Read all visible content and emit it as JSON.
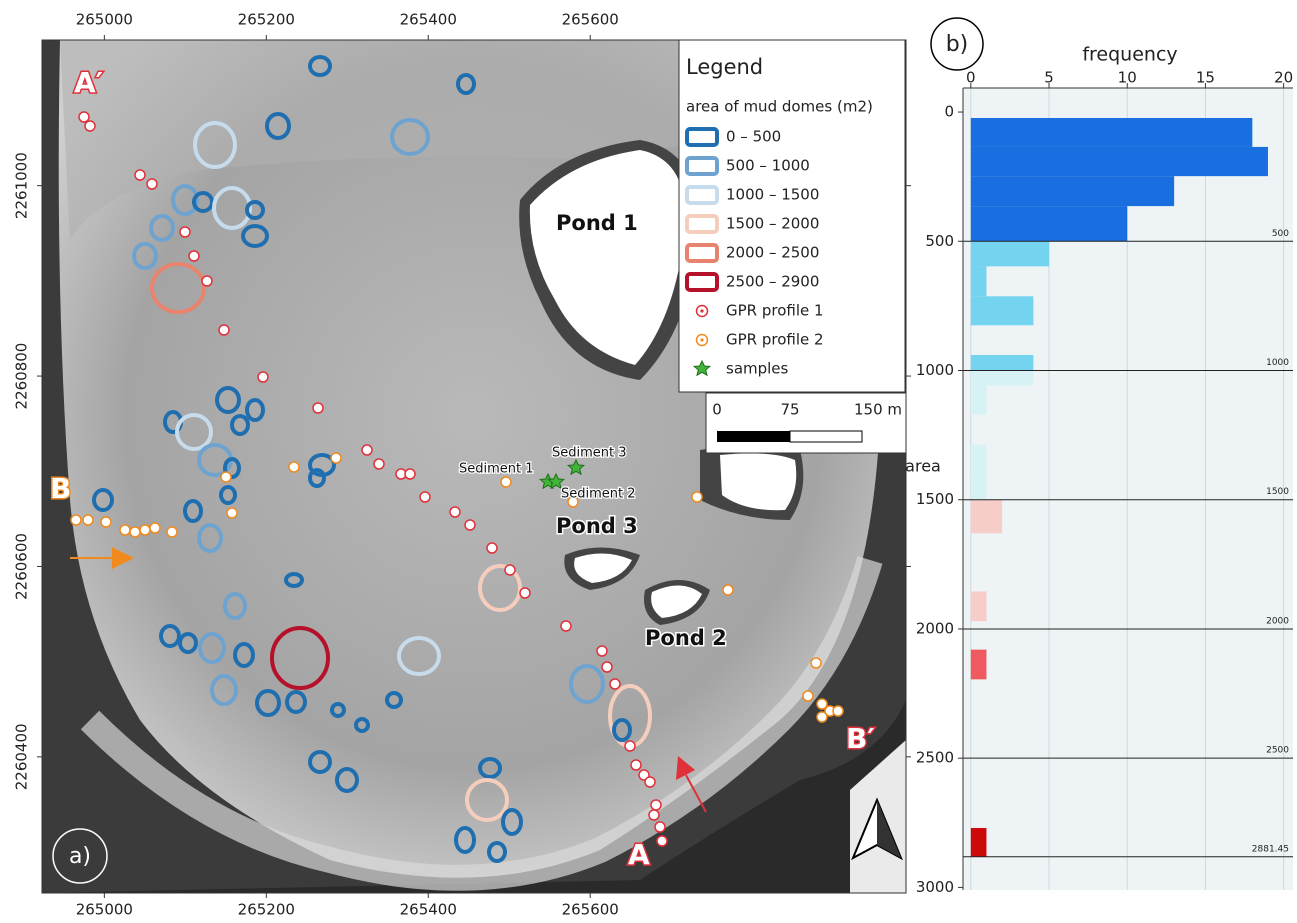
{
  "map": {
    "panel_label": "a)",
    "xlim": [
      264923,
      265990
    ],
    "xticks": [
      265000,
      265200,
      265400,
      265600
    ],
    "ylim": [
      2260257,
      2261153
    ],
    "yticks": [
      2260400,
      2260600,
      2260800,
      2261000
    ],
    "legend": {
      "title": "Legend",
      "subtitle": "area of mud domes (m2)",
      "items": [
        {
          "label": "0 – 500",
          "color": "#1f6fb0"
        },
        {
          "label": "500 – 1000",
          "color": "#6ea3cf"
        },
        {
          "label": "1000 – 1500",
          "color": "#c6dcec"
        },
        {
          "label": "1500 – 2000",
          "color": "#f5cdbd"
        },
        {
          "label": "2000 – 2500",
          "color": "#e8846d"
        },
        {
          "label": "2500 – 2900",
          "color": "#b5112a"
        }
      ],
      "markers": [
        {
          "label": "GPR profile 1",
          "color": "#e0303a"
        },
        {
          "label": "GPR profile 2",
          "color": "#f08a1e"
        },
        {
          "label": "samples",
          "color": "#42b43a"
        }
      ]
    },
    "scale_bar": {
      "labels": [
        "0",
        "75",
        "150 m"
      ]
    },
    "labels": {
      "pond_1": "Pond 1",
      "pond_2": "Pond 2",
      "pond_3": "Pond 3",
      "sediment_1": "Sediment 1",
      "sediment_2": "Sediment 2",
      "sediment_3": "Sediment 3",
      "a_prime": "A′",
      "a": "A",
      "b": "B",
      "b_prime": "B′"
    }
  },
  "chart_data": {
    "type": "histogram",
    "orientation": "horizontal",
    "panel_label": "b)",
    "xlabel": "frequency",
    "ylabel": "area",
    "bins": [
      23,
      135,
      248,
      364,
      500,
      597,
      713,
      825,
      940,
      1000,
      1058,
      1170,
      1287,
      1400,
      1500,
      1630,
      1855,
      1970,
      2080,
      2195,
      2770,
      2881
    ],
    "values": [
      18,
      19,
      13,
      10,
      5,
      1,
      4,
      0,
      4,
      4,
      1,
      0,
      1,
      1,
      2,
      0,
      1,
      0,
      1,
      0,
      1
    ],
    "colors": [
      "#1a6fe0",
      "#1a6fe0",
      "#1a6fe0",
      "#1a6fe0",
      "#74d3ee",
      "#74d3ee",
      "#74d3ee",
      "#74d3ee",
      "#74d3ee",
      "#d6f2f4",
      "#d6f2f4",
      "#d6f2f4",
      "#d6f2f4",
      "#d6f2f4",
      "#f7cdc8",
      "#f7cdc8",
      "#f7cdc8",
      "#f7cdc8",
      "#ee5a5f",
      "#ee5a5f",
      "#cc0a0a"
    ],
    "xlim": [
      -0.5,
      20.6
    ],
    "xticks": [
      0,
      5,
      10,
      15,
      20
    ],
    "ylim": [
      -93,
      3010
    ],
    "yticks": [
      0,
      500,
      1000,
      1500,
      2000,
      2500,
      3000
    ],
    "breaks": [
      500,
      1000,
      1500,
      2000,
      2500,
      2881.45
    ],
    "grid": true
  }
}
